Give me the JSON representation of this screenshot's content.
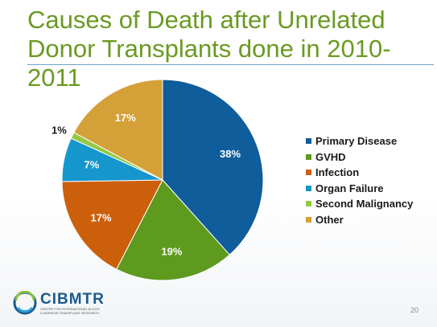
{
  "slide": {
    "title": "Causes of Death after Unrelated Donor Transplants done in 2010-2011",
    "page_number": "20"
  },
  "logo": {
    "name": "CIBMTR",
    "subtitle": "CENTER FOR INTERNATIONAL BLOOD\n& MARROW TRANSPLANT RESEARCH"
  },
  "chart_data": {
    "type": "pie",
    "labels": [
      "Primary Disease",
      "GVHD",
      "Infection",
      "Organ Failure",
      "Second Malignancy",
      "Other"
    ],
    "values": [
      38,
      19,
      17,
      7,
      1,
      17
    ],
    "value_labels": [
      "38%",
      "19%",
      "17%",
      "7%",
      "1%",
      "17%"
    ],
    "colors": [
      "#0f5d9a",
      "#5d9a1e",
      "#cc5f0b",
      "#1596cd",
      "#93c842",
      "#d4a038"
    ],
    "legend_position": "right",
    "start_angle_deg": 0,
    "direction": "clockwise"
  }
}
